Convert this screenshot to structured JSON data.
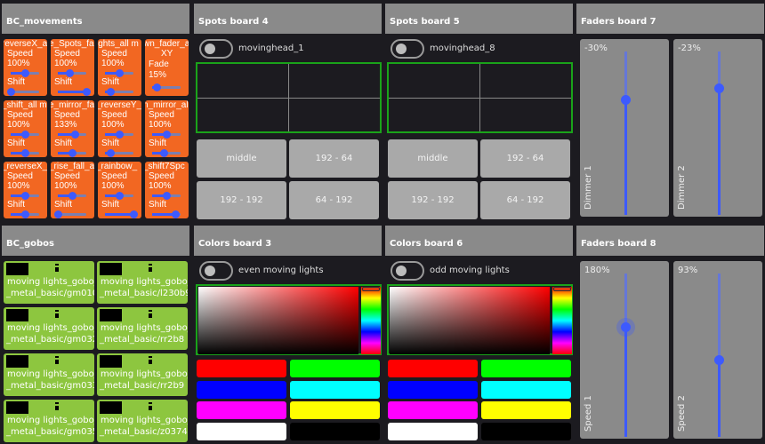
{
  "bc_movements": {
    "title": "BC_movements",
    "buttons": [
      {
        "title": "reverseX_al",
        "speed": "100%",
        "speed_f": 0.5,
        "shift_f": 0.0
      },
      {
        "title": "e_Spots_fa",
        "speed": "100%",
        "speed_f": 0.4,
        "shift_f": 1.0
      },
      {
        "title": "ights_all m",
        "speed": "100%",
        "speed_f": 0.5,
        "shift_f": 0.2
      },
      {
        "title": "wn_fader_al",
        "extra": "XY",
        "fade": "Fade",
        "fade_val": "15%",
        "fade_f": 0.15
      },
      {
        "title": "_shift_all m",
        "speed": "100%",
        "speed_f": 0.5,
        "shift_f": 0.5
      },
      {
        "title": "e_mirror_fa",
        "speed": "133%",
        "speed_f": 0.6,
        "shift_f": 0.5
      },
      {
        "title": "_reverseY_",
        "speed": "100%",
        "speed_f": 0.5,
        "shift_f": 0.2
      },
      {
        "title": "n_mirror_al",
        "speed": "100%",
        "speed_f": 0.5,
        "shift_f": 0.4
      },
      {
        "title": "_reverseX_",
        "speed": "100%",
        "speed_f": 0.5,
        "shift_f": 0.5
      },
      {
        "title": "_rise_fall_a",
        "speed": "100%",
        "speed_f": 0.5,
        "shift_f": 0.0
      },
      {
        "title": "_rainbow_",
        "speed": "100%",
        "speed_f": 0.5,
        "shift_f": 1.0
      },
      {
        "title": "_shift7Spc",
        "speed": "100%",
        "speed_f": 0.5,
        "shift_f": 0.8
      }
    ],
    "speed_label": "Speed",
    "shift_label": "Shift",
    "color": "#f26722"
  },
  "bc_gobos": {
    "title": "BC_gobos",
    "line1": "l moving lights_gobo_v",
    "items": [
      {
        "name": "_metal_basic/gm010",
        "icon": "gobo-dots-line-icon"
      },
      {
        "name": "_metal_basic/l230b9",
        "icon": "gobo-splash-icon"
      },
      {
        "name": "_metal_basic/gm032",
        "icon": "gobo-spiral-icon"
      },
      {
        "name": "_metal_basic/rr2b8",
        "icon": "gobo-bars-icon"
      },
      {
        "name": "_metal_basic/gm033",
        "icon": "gobo-triangle-icon"
      },
      {
        "name": "_metal_basic/rr2b9",
        "icon": "gobo-dot-grid-icon"
      },
      {
        "name": "_metal_basic/gm035",
        "icon": "gobo-quarter-icon"
      },
      {
        "name": "_metal_basic/z03748-1",
        "icon": "gobo-star-icon"
      }
    ],
    "color": "#8dc63f"
  },
  "spots": [
    {
      "title": "Spots board 4",
      "toggle": "movinghead_1",
      "buttons": [
        "middle",
        "192 - 64",
        "192 - 192",
        "64 - 192"
      ]
    },
    {
      "title": "Spots board 5",
      "toggle": "movinghead_8",
      "buttons": [
        "middle",
        "192 - 64",
        "192 - 192",
        "64 - 192"
      ]
    }
  ],
  "colors": [
    {
      "title": "Colors board 3",
      "toggle": "even moving lights"
    },
    {
      "title": "Colors board 6",
      "toggle": "odd moving lights"
    }
  ],
  "swatches": [
    "#ff0000",
    "#00ff00",
    "#0000ff",
    "#00ffff",
    "#ff00ff",
    "#ffff00",
    "#ffffff",
    "#000000"
  ],
  "faders": [
    {
      "title": "Faders board 7",
      "items": [
        {
          "value": "-30%",
          "name": "Dimmer 1",
          "level": 0.7
        },
        {
          "value": "-23%",
          "name": "Dimmer 2",
          "level": 0.77
        }
      ]
    },
    {
      "title": "Faders board 8",
      "items": [
        {
          "value": "180%",
          "name": "Speed 1",
          "level": 0.67,
          "active": true
        },
        {
          "value": "93%",
          "name": "Speed 2",
          "level": 0.47
        }
      ]
    }
  ],
  "accent": "#3d5afe"
}
